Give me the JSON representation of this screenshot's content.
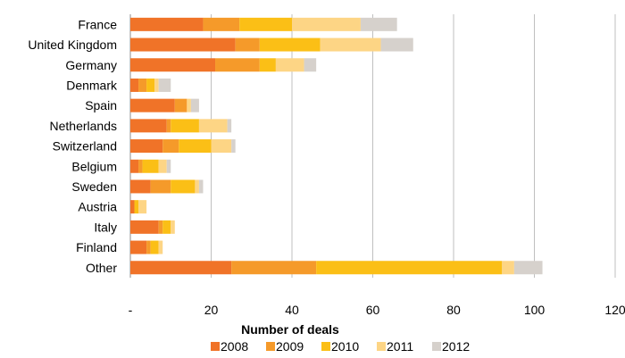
{
  "chart_data": {
    "type": "bar",
    "orientation": "horizontal",
    "stacked": true,
    "categories": [
      "France",
      "United Kingdom",
      "Germany",
      "Denmark",
      "Spain",
      "Netherlands",
      "Switzerland",
      "Belgium",
      "Sweden",
      "Austria",
      "Italy",
      "Finland",
      "Other"
    ],
    "series": [
      {
        "name": "2008",
        "color": "#f07328",
        "values": [
          18,
          26,
          21,
          2,
          11,
          9,
          8,
          2,
          5,
          1,
          7,
          4,
          25
        ]
      },
      {
        "name": "2009",
        "color": "#f59a2a",
        "values": [
          9,
          6,
          11,
          2,
          3,
          1,
          4,
          1,
          5,
          0,
          1,
          1,
          21
        ]
      },
      {
        "name": "2010",
        "color": "#fbbf16",
        "values": [
          13,
          15,
          4,
          2,
          0,
          7,
          8,
          4,
          6,
          1,
          2,
          2,
          46
        ]
      },
      {
        "name": "2011",
        "color": "#fdd585",
        "values": [
          17,
          15,
          7,
          1,
          1,
          7,
          5,
          2,
          1,
          2,
          1,
          1,
          3
        ]
      },
      {
        "name": "2012",
        "color": "#d6d1cc",
        "values": [
          9,
          8,
          3,
          3,
          2,
          1,
          1,
          1,
          1,
          0,
          0,
          0,
          7
        ]
      }
    ],
    "xlabel": "Number of deals",
    "xlim": [
      0,
      120
    ],
    "xticks": [
      "-",
      "20",
      "40",
      "60",
      "80",
      "100",
      "120"
    ],
    "grid": "vertical",
    "legend": "bottom"
  }
}
